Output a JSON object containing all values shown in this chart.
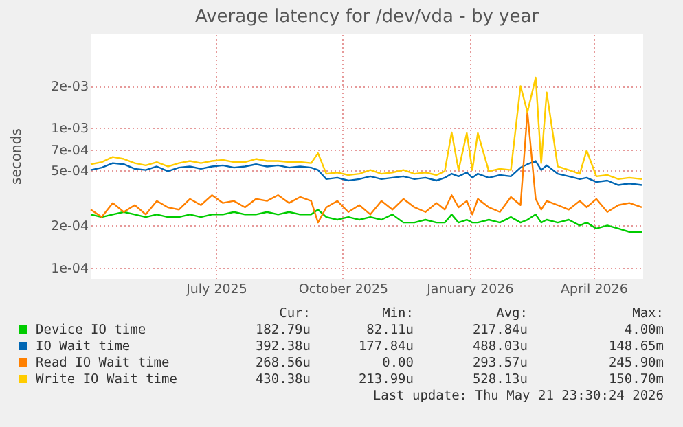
{
  "chart_data": {
    "type": "line",
    "title": "Average latency for /dev/vda - by year",
    "ylabel": "seconds",
    "log": "y",
    "grid": true,
    "legend": "bottom",
    "marker": "none",
    "line_style": "solid",
    "xlim": [
      "2025-04-16",
      "2026-05-22"
    ],
    "xticks": [
      {
        "value": "2025-07-16",
        "label": "July 2025"
      },
      {
        "value": "2025-10-16",
        "label": "October 2025"
      },
      {
        "value": "2026-01-16",
        "label": "January 2026"
      },
      {
        "value": "2026-04-16",
        "label": "April 2026"
      }
    ],
    "ylim": [
      8.3e-05,
      0.0047
    ],
    "yticks": [
      {
        "value": 0.0001,
        "label": "1e-04"
      },
      {
        "value": 0.0002,
        "label": "2e-04"
      },
      {
        "value": 0.0005,
        "label": "5e-04"
      },
      {
        "value": 0.0007,
        "label": "7e-04"
      },
      {
        "value": 0.001,
        "label": "1e-03"
      },
      {
        "value": 0.002,
        "label": "2e-03"
      }
    ],
    "x": [
      "2025-04-16",
      "2025-04-24",
      "2025-05-02",
      "2025-05-10",
      "2025-05-18",
      "2025-05-26",
      "2025-06-03",
      "2025-06-11",
      "2025-06-19",
      "2025-06-27",
      "2025-07-05",
      "2025-07-13",
      "2025-07-21",
      "2025-07-29",
      "2025-08-06",
      "2025-08-14",
      "2025-08-22",
      "2025-08-30",
      "2025-09-07",
      "2025-09-15",
      "2025-09-23",
      "2025-09-28",
      "2025-10-04",
      "2025-10-12",
      "2025-10-20",
      "2025-10-28",
      "2025-11-05",
      "2025-11-13",
      "2025-11-21",
      "2025-11-29",
      "2025-12-07",
      "2025-12-15",
      "2025-12-23",
      "2025-12-29",
      "2026-01-03",
      "2026-01-08",
      "2026-01-14",
      "2026-01-18",
      "2026-01-22",
      "2026-01-30",
      "2026-02-07",
      "2026-02-15",
      "2026-02-22",
      "2026-02-27",
      "2026-03-05",
      "2026-03-09",
      "2026-03-13",
      "2026-03-21",
      "2026-03-29",
      "2026-04-06",
      "2026-04-11",
      "2026-04-18",
      "2026-04-26",
      "2026-05-04",
      "2026-05-12",
      "2026-05-21"
    ],
    "series": [
      {
        "name": "Device IO time",
        "color": "#00cc00",
        "values": [
          0.00024,
          0.00023,
          0.00024,
          0.00025,
          0.00024,
          0.00023,
          0.00024,
          0.00023,
          0.00023,
          0.00024,
          0.00023,
          0.00024,
          0.00024,
          0.00025,
          0.00024,
          0.00024,
          0.00025,
          0.00024,
          0.00025,
          0.00024,
          0.00024,
          0.00026,
          0.00023,
          0.00022,
          0.00023,
          0.00022,
          0.00023,
          0.00022,
          0.00024,
          0.00021,
          0.00021,
          0.00022,
          0.00021,
          0.00021,
          0.00024,
          0.00021,
          0.00022,
          0.00021,
          0.00021,
          0.00022,
          0.00021,
          0.00023,
          0.00021,
          0.00022,
          0.00024,
          0.00021,
          0.00022,
          0.00021,
          0.00022,
          0.0002,
          0.00021,
          0.00019,
          0.0002,
          0.00019,
          0.00018,
          0.00018
        ]
      },
      {
        "name": "IO Wait time",
        "color": "#0066b3",
        "values": [
          0.0005,
          0.00052,
          0.00056,
          0.00055,
          0.00051,
          0.0005,
          0.00053,
          0.00049,
          0.00052,
          0.00053,
          0.00051,
          0.00053,
          0.00054,
          0.00052,
          0.00053,
          0.00055,
          0.00053,
          0.00054,
          0.00052,
          0.00053,
          0.00052,
          0.0005,
          0.00043,
          0.00044,
          0.00042,
          0.00043,
          0.00045,
          0.00043,
          0.00044,
          0.00045,
          0.00043,
          0.00044,
          0.00042,
          0.00044,
          0.00047,
          0.00045,
          0.00048,
          0.00044,
          0.00047,
          0.00044,
          0.00046,
          0.00045,
          0.00052,
          0.00055,
          0.00058,
          0.0005,
          0.00054,
          0.00047,
          0.00045,
          0.00043,
          0.00044,
          0.00041,
          0.00042,
          0.00039,
          0.0004,
          0.00039
        ]
      },
      {
        "name": "Read IO Wait time",
        "color": "#ff8000",
        "values": [
          0.00026,
          0.00023,
          0.00029,
          0.00025,
          0.00028,
          0.00024,
          0.0003,
          0.00027,
          0.00026,
          0.00031,
          0.00028,
          0.00033,
          0.00029,
          0.0003,
          0.00027,
          0.00031,
          0.0003,
          0.00033,
          0.00029,
          0.00032,
          0.0003,
          0.00021,
          0.00027,
          0.0003,
          0.00025,
          0.00028,
          0.00024,
          0.0003,
          0.00026,
          0.00031,
          0.00027,
          0.00025,
          0.00029,
          0.00026,
          0.00033,
          0.00027,
          0.0003,
          0.00024,
          0.00031,
          0.00027,
          0.00025,
          0.00032,
          0.00028,
          0.0013,
          0.00031,
          0.00026,
          0.0003,
          0.00028,
          0.00026,
          0.0003,
          0.00027,
          0.00031,
          0.00025,
          0.00028,
          0.00029,
          0.00027
        ]
      },
      {
        "name": "Write IO Wait time",
        "color": "#ffcc00",
        "values": [
          0.00055,
          0.00057,
          0.00062,
          0.0006,
          0.00056,
          0.00054,
          0.00057,
          0.00053,
          0.00056,
          0.00058,
          0.00056,
          0.00058,
          0.00059,
          0.00057,
          0.00057,
          0.0006,
          0.00058,
          0.00058,
          0.00057,
          0.00057,
          0.00056,
          0.00066,
          0.00047,
          0.00048,
          0.00046,
          0.00047,
          0.0005,
          0.00047,
          0.00048,
          0.0005,
          0.00047,
          0.00048,
          0.00046,
          0.00049,
          0.00093,
          0.0005,
          0.00092,
          0.0005,
          0.00092,
          0.00049,
          0.00051,
          0.0005,
          0.002,
          0.0013,
          0.0023,
          0.00056,
          0.0018,
          0.00053,
          0.0005,
          0.00047,
          0.00069,
          0.00045,
          0.00046,
          0.00043,
          0.00044,
          0.00043
        ]
      }
    ],
    "annotations": [
      "Cur:",
      "Min:",
      "Avg:",
      "Max:",
      "182.79u",
      "82.11u",
      "217.84u",
      "4.00m",
      "392.38u",
      "177.84u",
      "488.03u",
      "148.65m",
      "268.56u",
      "0.00",
      "293.57u",
      "245.90m",
      "430.38u",
      "213.99u",
      "528.13u",
      "150.70m",
      "Last update: Thu May 21 23:30:24 2026"
    ]
  }
}
